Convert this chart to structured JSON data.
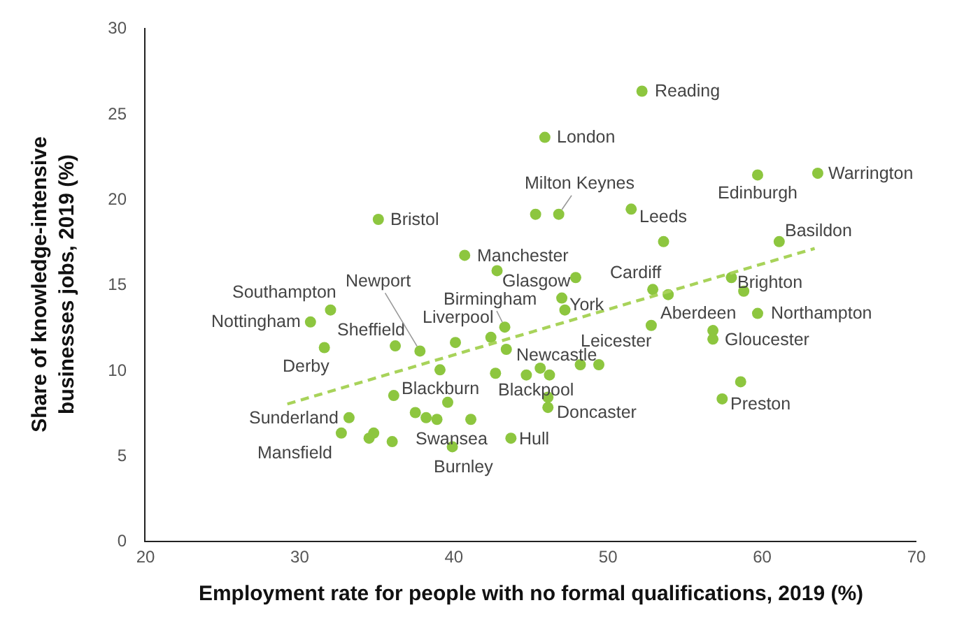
{
  "chart_data": {
    "type": "scatter",
    "xlabel": "Employment rate for people with no formal qualifications, 2019 (%)",
    "ylabel": "Share of knowledge-intensive businesses jobs, 2019 (%)",
    "xlim": [
      20,
      70
    ],
    "xticks": [
      20,
      30,
      40,
      50,
      60,
      70
    ],
    "ylim": [
      0,
      30
    ],
    "yticks": [
      0,
      5,
      10,
      15,
      20,
      25,
      30
    ],
    "grid": false,
    "series": [
      {
        "marker": "circle",
        "color": "#8dc63f",
        "x": [
          52.2,
          45.9,
          46.8,
          45.3,
          51.5,
          59.7,
          63.6,
          61.1,
          53.6,
          35.1,
          40.7,
          42.8,
          47.9,
          47.0,
          47.2,
          52.9,
          53.9,
          58.0,
          58.8,
          59.7,
          52.8,
          56.8,
          56.8,
          58.6,
          57.4,
          32.0,
          30.7,
          31.6,
          36.2,
          37.8,
          40.1,
          42.4,
          43.3,
          43.4,
          36.1,
          39.1,
          39.6,
          42.7,
          44.7,
          45.6,
          46.2,
          46.1,
          46.1,
          48.2,
          49.4,
          33.2,
          32.7,
          34.5,
          34.8,
          36.0,
          37.5,
          38.2,
          38.9,
          41.1,
          39.9,
          43.7
        ],
        "values": [
          26.3,
          23.6,
          19.1,
          19.1,
          19.4,
          21.4,
          21.5,
          17.5,
          17.5,
          18.8,
          16.7,
          15.8,
          15.4,
          14.2,
          13.5,
          14.7,
          14.4,
          15.4,
          14.6,
          13.3,
          12.6,
          12.3,
          11.8,
          9.3,
          8.3,
          13.5,
          12.8,
          11.3,
          11.4,
          11.1,
          11.6,
          11.9,
          12.5,
          11.2,
          8.5,
          10.0,
          8.1,
          9.8,
          9.7,
          10.1,
          9.7,
          8.4,
          7.8,
          10.3,
          10.3,
          7.2,
          6.3,
          6.0,
          6.3,
          5.8,
          7.5,
          7.2,
          7.1,
          7.1,
          5.5,
          6.0
        ]
      },
      {
        "type": "line",
        "color": "#a8d35a",
        "line_style": "dashed",
        "x": [
          29.2,
          63.4
        ],
        "values": [
          8.0,
          17.1
        ]
      }
    ],
    "annotations": [
      {
        "text": "Reading",
        "x": 52.2,
        "y": 26.3
      },
      {
        "text": "London",
        "x": 45.9,
        "y": 23.6
      },
      {
        "text": "Milton Keynes",
        "x": 46.8,
        "y": 19.1
      },
      {
        "text": "Leeds",
        "x": 51.5,
        "y": 19.4
      },
      {
        "text": "Edinburgh",
        "x": 59.7,
        "y": 21.4
      },
      {
        "text": "Warrington",
        "x": 63.6,
        "y": 21.5
      },
      {
        "text": "Basildon",
        "x": 61.1,
        "y": 17.5
      },
      {
        "text": "Bristol",
        "x": 35.1,
        "y": 18.8
      },
      {
        "text": "Manchester",
        "x": 40.7,
        "y": 16.7
      },
      {
        "text": "Glasgow",
        "x": 42.8,
        "y": 15.8
      },
      {
        "text": "Cardiff",
        "x": 52.9,
        "y": 14.7
      },
      {
        "text": "York",
        "x": 47.0,
        "y": 14.2
      },
      {
        "text": "Brighton",
        "x": 58.0,
        "y": 15.4
      },
      {
        "text": "Aberdeen",
        "x": 53.9,
        "y": 14.4
      },
      {
        "text": "Northampton",
        "x": 59.7,
        "y": 13.3
      },
      {
        "text": "Leicester",
        "x": 52.8,
        "y": 12.6
      },
      {
        "text": "Gloucester",
        "x": 56.8,
        "y": 11.8
      },
      {
        "text": "Preston",
        "x": 57.4,
        "y": 8.3
      },
      {
        "text": "Southampton",
        "x": 32.0,
        "y": 13.5
      },
      {
        "text": "Nottingham",
        "x": 30.7,
        "y": 12.8
      },
      {
        "text": "Derby",
        "x": 31.6,
        "y": 11.3
      },
      {
        "text": "Sheffield",
        "x": 36.2,
        "y": 11.4
      },
      {
        "text": "Newport",
        "x": 37.8,
        "y": 11.1
      },
      {
        "text": "Birmingham",
        "x": 43.3,
        "y": 12.5
      },
      {
        "text": "Liverpool",
        "x": 42.4,
        "y": 11.9
      },
      {
        "text": "Newcastle",
        "x": 43.4,
        "y": 11.2
      },
      {
        "text": "Blackburn",
        "x": 36.1,
        "y": 8.5
      },
      {
        "text": "Blackpool",
        "x": 42.7,
        "y": 9.8
      },
      {
        "text": "Doncaster",
        "x": 46.1,
        "y": 7.8
      },
      {
        "text": "Sunderland",
        "x": 33.2,
        "y": 7.2
      },
      {
        "text": "Mansfield",
        "x": 32.7,
        "y": 6.3
      },
      {
        "text": "Swansea",
        "x": 38.9,
        "y": 7.1
      },
      {
        "text": "Hull",
        "x": 43.7,
        "y": 6.0
      },
      {
        "text": "Burnley",
        "x": 39.9,
        "y": 5.5
      }
    ]
  }
}
